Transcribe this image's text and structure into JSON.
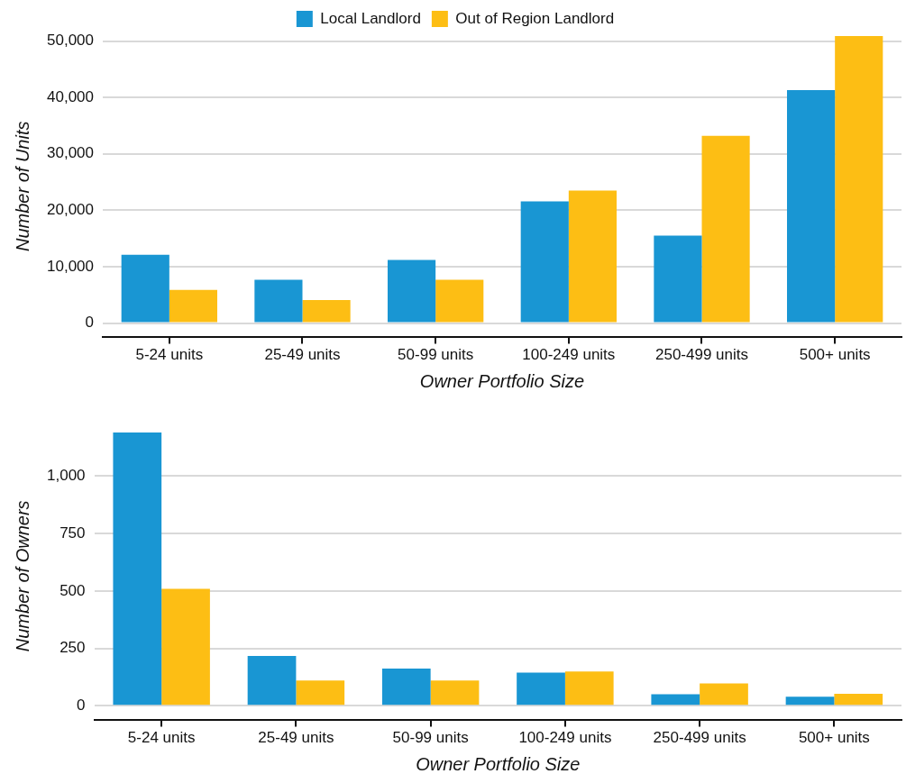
{
  "chart_data": [
    {
      "type": "bar",
      "xlabel": "Owner Portfolio Size",
      "ylabel": "Number of Units",
      "categories": [
        "5-24 units",
        "25-49 units",
        "50-99 units",
        "100-249 units",
        "250-499 units",
        "500+ units"
      ],
      "series": [
        {
          "name": "Local Landlord",
          "color": "#1996d3",
          "values": [
            12100,
            7700,
            11200,
            21600,
            15500,
            41300
          ]
        },
        {
          "name": "Out of Region Landlord",
          "color": "#fdbe14",
          "values": [
            5900,
            4100,
            7700,
            23500,
            33200,
            50900
          ]
        }
      ],
      "ylim": [
        -2400,
        50900
      ],
      "yticks": [
        {
          "value": 0,
          "label": "0"
        },
        {
          "value": 10000,
          "label": "10,000"
        },
        {
          "value": 20000,
          "label": "20,000"
        },
        {
          "value": 30000,
          "label": "30,000"
        },
        {
          "value": 40000,
          "label": "40,000"
        },
        {
          "value": 50000,
          "label": "50,000"
        }
      ],
      "grid": "y",
      "legend": "top"
    },
    {
      "type": "bar",
      "xlabel": "Owner Portfolio Size",
      "ylabel": "Number of Owners",
      "categories": [
        "5-24 units",
        "25-49 units",
        "50-99 units",
        "100-249 units",
        "250-499 units",
        "500+ units"
      ],
      "series": [
        {
          "color": "#1996d3",
          "values": [
            1190,
            217,
            162,
            144,
            50,
            39
          ]
        },
        {
          "color": "#fdbe14",
          "values": [
            509,
            110,
            110,
            149,
            97,
            52
          ]
        }
      ],
      "ylim": [
        -60,
        1190
      ],
      "yticks": [
        {
          "value": 0,
          "label": "0"
        },
        {
          "value": 250,
          "label": "250"
        },
        {
          "value": 500,
          "label": "500"
        },
        {
          "value": 750,
          "label": "750"
        },
        {
          "value": 1000,
          "label": "1,000"
        }
      ],
      "grid": "y",
      "legend": false
    }
  ]
}
